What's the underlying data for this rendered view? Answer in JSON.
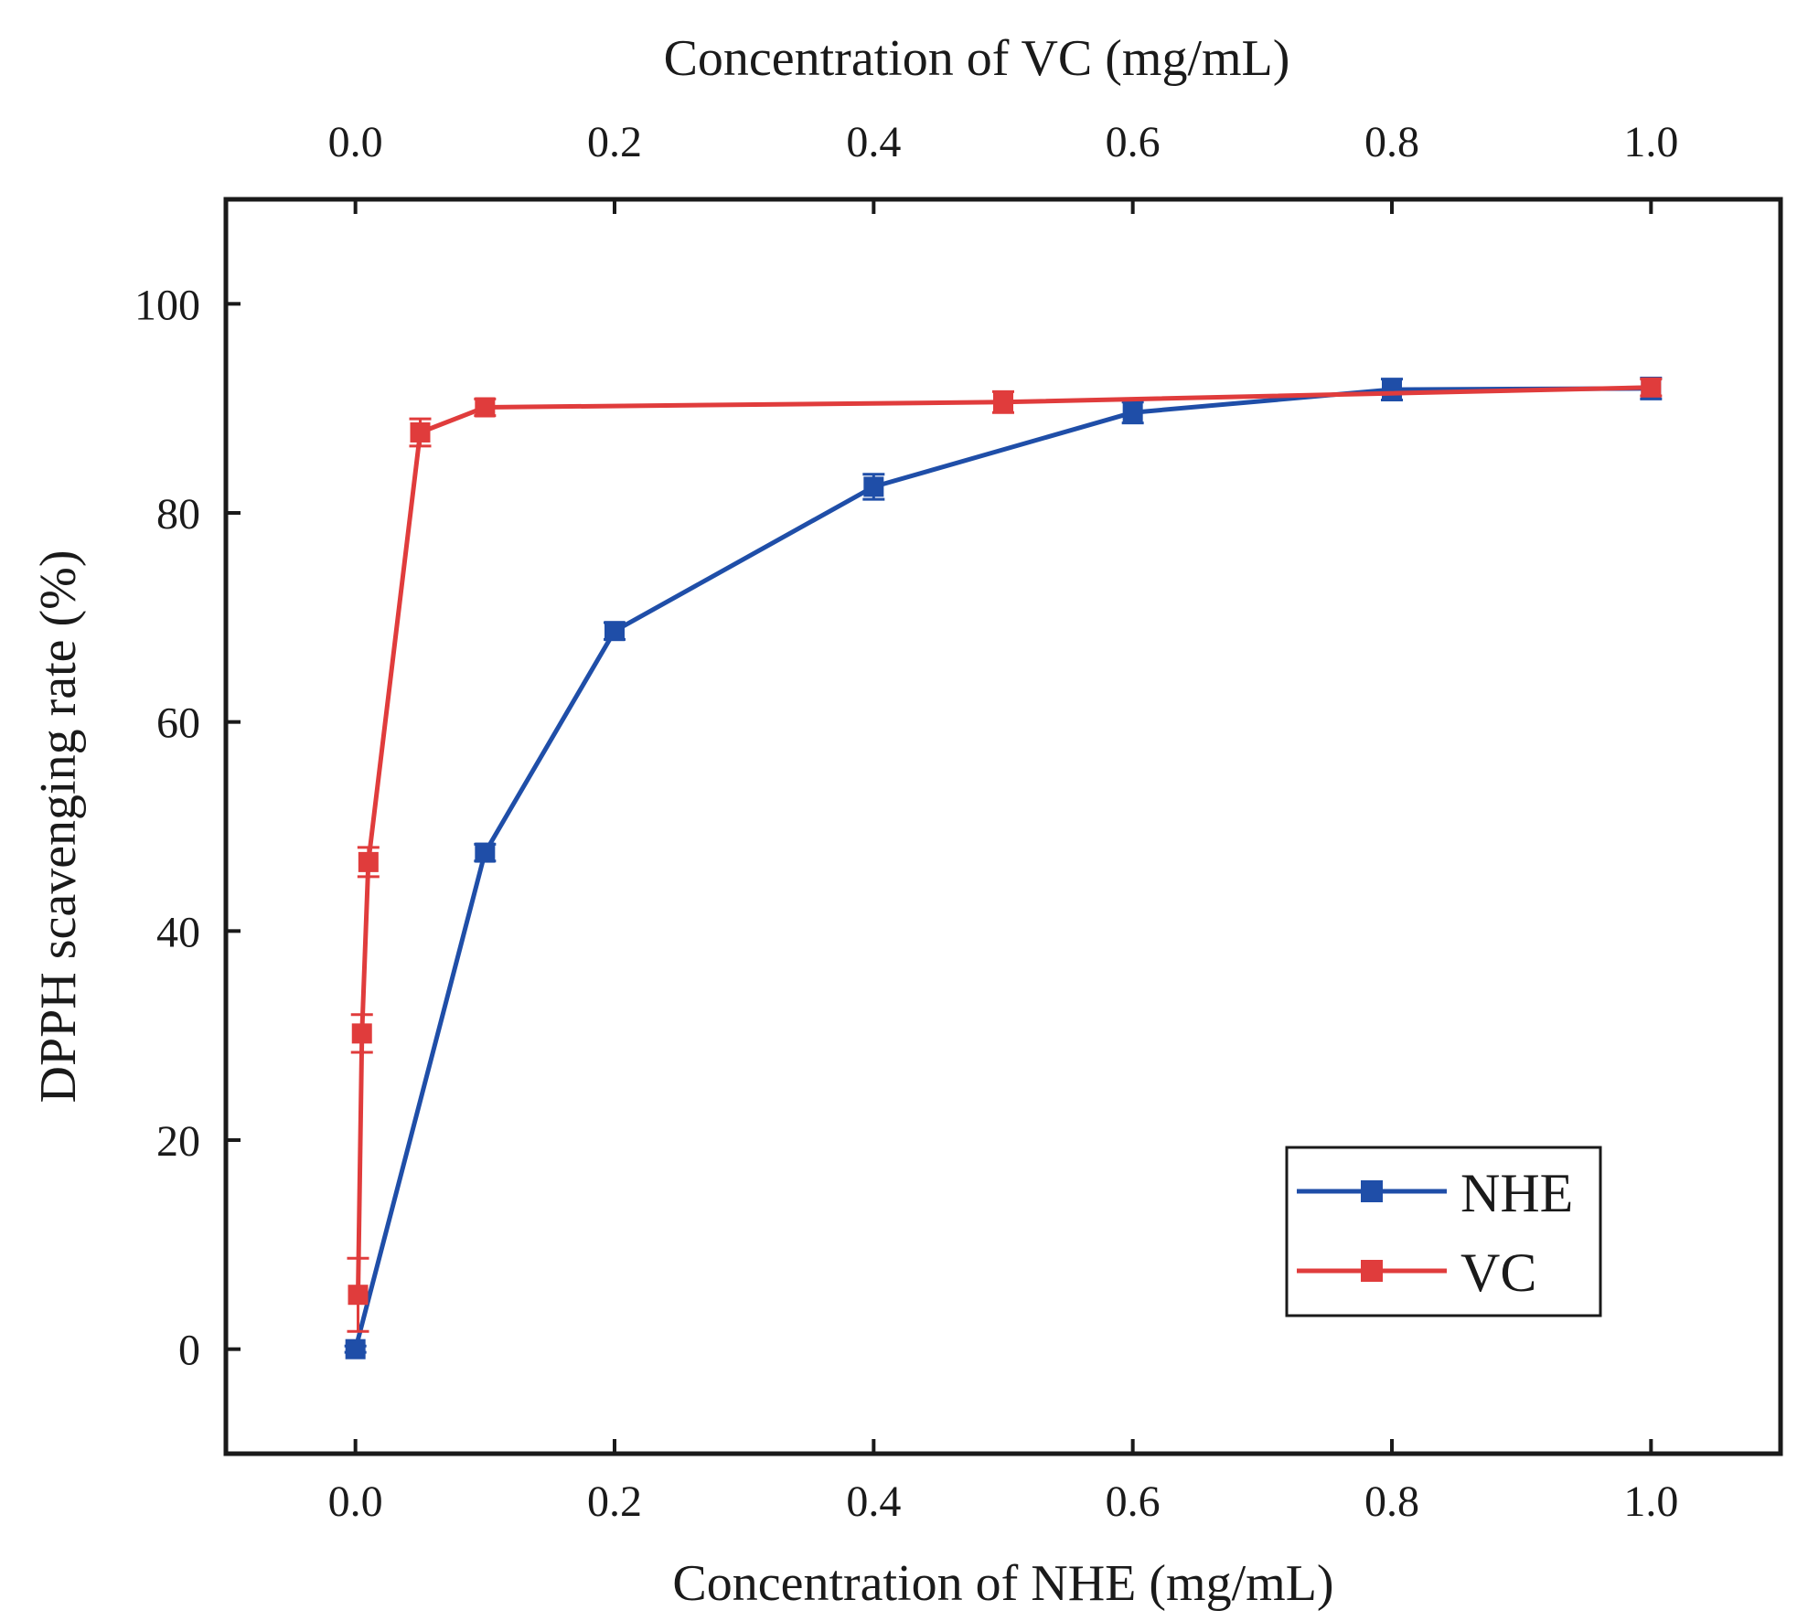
{
  "chart_data": {
    "type": "line",
    "title": "",
    "xlabel_bottom": "Concentration of NHE (mg/mL)",
    "xlabel_top": "Concentration of VC (mg/mL)",
    "ylabel": "DPPH scavenging rate (%)",
    "xlim": [
      -0.1,
      1.1
    ],
    "ylim": [
      -10,
      110
    ],
    "xticks": [
      "0.0",
      "0.2",
      "0.4",
      "0.6",
      "0.8",
      "1.0"
    ],
    "yticks": [
      "0",
      "20",
      "40",
      "60",
      "80",
      "100"
    ],
    "legend_position": "bottom-right",
    "series": [
      {
        "name": "NHE",
        "color": "#1f4ea8",
        "x": [
          0,
          0.1,
          0.2,
          0.4,
          0.6,
          0.8,
          1.0
        ],
        "y": [
          0,
          47.5,
          68.7,
          82.5,
          89.6,
          91.8,
          91.9
        ],
        "err": [
          0.3,
          0.8,
          0.8,
          1.2,
          1.0,
          1.0,
          1.0
        ]
      },
      {
        "name": "VC",
        "color": "#e03c3c",
        "x": [
          0.002,
          0.005,
          0.01,
          0.05,
          0.1,
          0.5,
          1.0
        ],
        "y": [
          5.2,
          30.2,
          46.6,
          87.7,
          90.1,
          90.6,
          92.0
        ],
        "err": [
          3.5,
          1.8,
          1.4,
          1.3,
          0.8,
          1.0,
          0.8
        ]
      }
    ]
  }
}
